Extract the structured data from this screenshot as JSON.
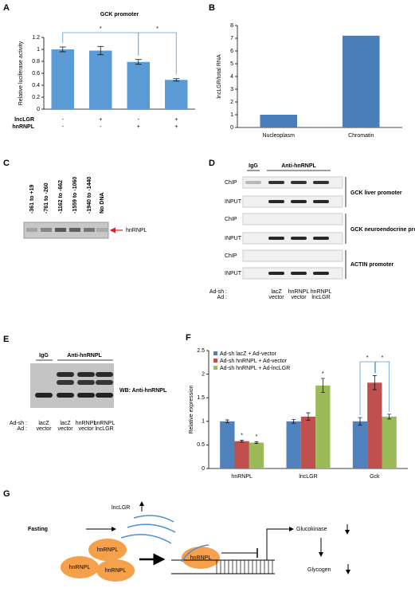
{
  "panels": {
    "labels": [
      "A",
      "B",
      "C",
      "D",
      "E",
      "F",
      "G"
    ]
  },
  "chart_data": [
    {
      "type": "bar",
      "title": "GCK promoter",
      "y_label": "Relative luciferase activity",
      "categories": [
        null,
        null,
        null,
        null
      ],
      "values": [
        1.0,
        0.98,
        0.79,
        0.49
      ],
      "errors": [
        0.04,
        0.07,
        0.04,
        0.02
      ],
      "color": "#5b9bd5",
      "ylim": [
        0,
        1.2
      ],
      "yticks": [
        0,
        0.2,
        0.4,
        0.6,
        0.8,
        1,
        1.2
      ],
      "grid": false,
      "conditions": [
        {
          "name": "lncLGR",
          "marks": [
            "-",
            "+",
            "-",
            "+"
          ]
        },
        {
          "name": "hnRNPL",
          "marks": [
            "-",
            "-",
            "+",
            "+"
          ]
        }
      ],
      "annotations": [
        "*",
        "*"
      ]
    },
    {
      "type": "bar",
      "y_label": "lncLGR/total RNA",
      "categories": [
        "Nucleoplasm",
        "Chromatin"
      ],
      "values": [
        1,
        7.2
      ],
      "color": "#4a7ebb",
      "ylim": [
        0,
        8
      ],
      "yticks": [
        0,
        1,
        2,
        3,
        4,
        5,
        6,
        7,
        8
      ],
      "grid": false
    },
    {
      "type": "bar",
      "y_label": "Relative expression",
      "categories": [
        "hnRNPL",
        "lncLGR",
        "Gck"
      ],
      "series": [
        {
          "name": "Ad-sh lacZ + Ad-vector",
          "color": "#4f81bd",
          "values": [
            1,
            1,
            1
          ],
          "errors": [
            0.03,
            0.04,
            0.08
          ]
        },
        {
          "name": "Ad-sh hnRNPL + Ad-vector",
          "color": "#c0504d",
          "values": [
            0.58,
            1.1,
            1.82
          ],
          "errors": [
            0.02,
            0.08,
            0.15
          ]
        },
        {
          "name": "Ad-sh hnRNPL + Ad-lncLGR",
          "color": "#9bbb59",
          "values": [
            0.55,
            1.76,
            1.1
          ],
          "errors": [
            0.02,
            0.15,
            0.05
          ]
        }
      ],
      "ylim": [
        0,
        2.5
      ],
      "yticks": [
        0,
        0.5,
        1,
        1.5,
        2,
        2.5
      ],
      "grid": false,
      "legend": "upper left",
      "annotations": [
        "*",
        "*",
        "*",
        "*",
        "*"
      ]
    }
  ],
  "gel_c": {
    "lanes": [
      "-361 to +19",
      "-761 to -260",
      "-1162 to -662",
      "-1559 to -1060",
      "-1940 to -1440",
      "No DNA"
    ],
    "band_label": "hnRNPL"
  },
  "chip_d": {
    "headers": [
      "IgG",
      "Anti-hnRNPL"
    ],
    "row_labels": [
      "ChIP",
      "INPUT",
      "ChIP",
      "INPUT",
      "ChIP",
      "INPUT"
    ],
    "groups": [
      "GCK liver promoter",
      "GCK neuroendocrine promoter",
      "ACTIN promoter"
    ],
    "ad_sh_label": "Ad-sh :",
    "ad_label": "Ad :",
    "lanes": [
      [
        "lacZ",
        "vector"
      ],
      [
        "hnRNPL",
        "vector"
      ],
      [
        "hnRNPL",
        "lncLGR"
      ]
    ]
  },
  "western_e": {
    "headers": [
      "IgG",
      "Anti-hnRNPL"
    ],
    "blot_label": "WB: Anti-hnRNPL",
    "ad_sh_label": "Ad-sh :",
    "ad_label": "Ad :",
    "lanes": [
      [
        "lacZ",
        "vector"
      ],
      [
        "lacZ",
        "vector"
      ],
      [
        "hnRNPL",
        "vector"
      ],
      [
        "hnRNPL",
        "lncLGR"
      ]
    ]
  },
  "model_g": {
    "lncrna": "lncLGR",
    "stimulus": "Fasting",
    "protein": [
      "hnRNPL",
      "hnRNPL",
      "hnRNPL",
      "hnRNPL"
    ],
    "target": "Glucokinase",
    "product": "Glycogen"
  }
}
